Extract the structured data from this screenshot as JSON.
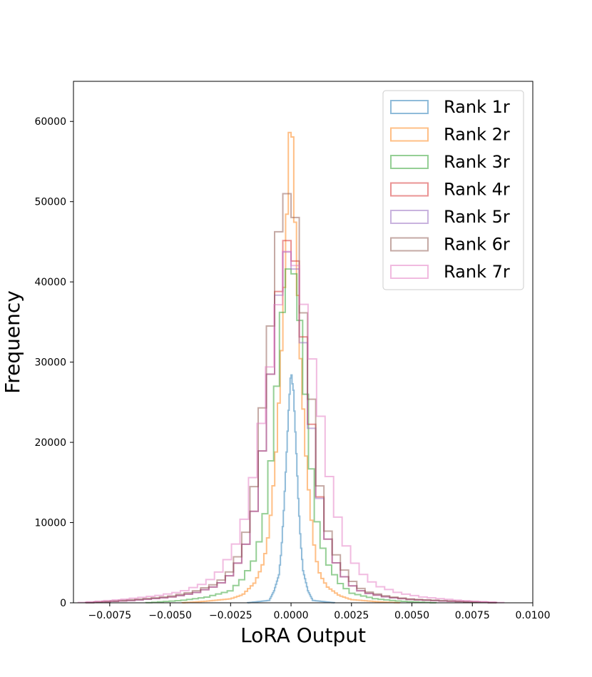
{
  "chart_data": {
    "type": "histogram",
    "title": "",
    "xlabel": "LoRA Output",
    "ylabel": "Frequency",
    "xlim": [
      -0.009,
      0.01
    ],
    "ylim": [
      0,
      65000
    ],
    "xticks": [
      -0.0075,
      -0.005,
      -0.0025,
      0.0,
      0.0025,
      0.005,
      0.0075,
      0.01
    ],
    "xtick_labels": [
      "−0.0075",
      "−0.0050",
      "−0.0025",
      "0.0000",
      "0.0025",
      "0.0050",
      "0.0075",
      "0.0100"
    ],
    "yticks": [
      0,
      10000,
      20000,
      30000,
      40000,
      50000,
      60000
    ],
    "ytick_labels": [
      "0",
      "10000",
      "20000",
      "30000",
      "40000",
      "50000",
      "60000"
    ],
    "grid": false,
    "legend_position": "top-right",
    "series": [
      {
        "name": "Rank 1r",
        "color": "#1f77b4",
        "step_x": [
          -0.0018,
          0.0018
        ],
        "profile": [
          [
            -0.0018,
            0
          ],
          [
            -0.0009,
            300
          ],
          [
            -0.0007,
            1500
          ],
          [
            -0.0005,
            3500
          ],
          [
            -0.0004,
            6500
          ],
          [
            -0.0003,
            11500
          ],
          [
            -0.0002,
            17500
          ],
          [
            -0.0001,
            24000
          ],
          [
            0.0,
            29000
          ],
          [
            5e-05,
            27500
          ],
          [
            0.0001,
            26500
          ],
          [
            0.0002,
            20000
          ],
          [
            0.0003,
            13000
          ],
          [
            0.0004,
            7500
          ],
          [
            0.0005,
            4000
          ],
          [
            0.0007,
            1500
          ],
          [
            0.0009,
            300
          ],
          [
            0.0018,
            0
          ]
        ]
      },
      {
        "name": "Rank 2r",
        "color": "#ff7f0e",
        "profile": [
          [
            -0.0045,
            0
          ],
          [
            -0.0035,
            200
          ],
          [
            -0.0025,
            500
          ],
          [
            -0.002,
            1000
          ],
          [
            -0.0015,
            2500
          ],
          [
            -0.0012,
            4500
          ],
          [
            -0.001,
            7000
          ],
          [
            -0.0008,
            12000
          ],
          [
            -0.0006,
            19500
          ],
          [
            -0.0004,
            31000
          ],
          [
            -0.0002,
            45000
          ],
          [
            -0.0001,
            56000
          ],
          [
            0.0,
            62000
          ],
          [
            0.0001,
            55000
          ],
          [
            0.0002,
            44000
          ],
          [
            0.0004,
            30000
          ],
          [
            0.0006,
            19000
          ],
          [
            0.0008,
            11500
          ],
          [
            0.001,
            6000
          ],
          [
            0.0012,
            3500
          ],
          [
            0.0015,
            2000
          ],
          [
            0.002,
            900
          ],
          [
            0.0025,
            400
          ],
          [
            0.0035,
            150
          ],
          [
            0.0045,
            0
          ]
        ]
      },
      {
        "name": "Rank 3r",
        "color": "#2ca02c",
        "profile": [
          [
            -0.006,
            0
          ],
          [
            -0.0045,
            300
          ],
          [
            -0.0035,
            700
          ],
          [
            -0.0025,
            1500
          ],
          [
            -0.002,
            3000
          ],
          [
            -0.0015,
            5500
          ],
          [
            -0.0012,
            9000
          ],
          [
            -0.001,
            12500
          ],
          [
            -0.0008,
            19000
          ],
          [
            -0.0006,
            27000
          ],
          [
            -0.0004,
            35000
          ],
          [
            -0.0002,
            41000
          ],
          [
            0.0,
            42500
          ],
          [
            0.0002,
            40000
          ],
          [
            0.0004,
            34000
          ],
          [
            0.0006,
            26000
          ],
          [
            0.0008,
            18000
          ],
          [
            0.001,
            11500
          ],
          [
            0.0012,
            8000
          ],
          [
            0.0015,
            5000
          ],
          [
            0.002,
            2500
          ],
          [
            0.0025,
            1200
          ],
          [
            0.0035,
            500
          ],
          [
            0.0045,
            200
          ],
          [
            0.006,
            0
          ]
        ]
      },
      {
        "name": "Rank 4r",
        "color": "#d62728",
        "profile": [
          [
            -0.0085,
            0
          ],
          [
            -0.0065,
            300
          ],
          [
            -0.005,
            700
          ],
          [
            -0.004,
            1200
          ],
          [
            -0.003,
            2200
          ],
          [
            -0.0025,
            3500
          ],
          [
            -0.002,
            6000
          ],
          [
            -0.0016,
            10000
          ],
          [
            -0.0013,
            16000
          ],
          [
            -0.001,
            24000
          ],
          [
            -0.0008,
            30000
          ],
          [
            -0.0006,
            37000
          ],
          [
            -0.0004,
            41000
          ],
          [
            -0.0002,
            45000
          ],
          [
            0.0,
            46000
          ],
          [
            0.0002,
            42000
          ],
          [
            0.0004,
            37000
          ],
          [
            0.0006,
            30000
          ],
          [
            0.0008,
            24000
          ],
          [
            0.001,
            17000
          ],
          [
            0.0013,
            11000
          ],
          [
            0.0016,
            7000
          ],
          [
            0.002,
            4000
          ],
          [
            0.0025,
            2200
          ],
          [
            0.003,
            1300
          ],
          [
            0.004,
            700
          ],
          [
            0.005,
            400
          ],
          [
            0.0065,
            200
          ],
          [
            0.0085,
            0
          ]
        ]
      },
      {
        "name": "Rank 5r",
        "color": "#9467bd",
        "profile": [
          [
            -0.0085,
            0
          ],
          [
            -0.0065,
            300
          ],
          [
            -0.005,
            700
          ],
          [
            -0.004,
            1200
          ],
          [
            -0.003,
            2200
          ],
          [
            -0.0025,
            3500
          ],
          [
            -0.002,
            6000
          ],
          [
            -0.0016,
            10000
          ],
          [
            -0.0013,
            16000
          ],
          [
            -0.001,
            24000
          ],
          [
            -0.0008,
            30000
          ],
          [
            -0.0006,
            37000
          ],
          [
            -0.0004,
            40000
          ],
          [
            -0.0002,
            43500
          ],
          [
            0.0,
            45000
          ],
          [
            0.0002,
            41000
          ],
          [
            0.0004,
            36000
          ],
          [
            0.0006,
            29500
          ],
          [
            0.0008,
            23500
          ],
          [
            0.001,
            16500
          ],
          [
            0.0013,
            11000
          ],
          [
            0.0016,
            7000
          ],
          [
            0.002,
            4000
          ],
          [
            0.0025,
            2200
          ],
          [
            0.003,
            1300
          ],
          [
            0.004,
            700
          ],
          [
            0.005,
            400
          ],
          [
            0.0065,
            200
          ],
          [
            0.0085,
            0
          ]
        ]
      },
      {
        "name": "Rank 6r",
        "color": "#8c564b",
        "profile": [
          [
            -0.0085,
            0
          ],
          [
            -0.0065,
            400
          ],
          [
            -0.005,
            800
          ],
          [
            -0.004,
            1400
          ],
          [
            -0.003,
            2500
          ],
          [
            -0.0025,
            4000
          ],
          [
            -0.002,
            7000
          ],
          [
            -0.0016,
            12500
          ],
          [
            -0.0013,
            21000
          ],
          [
            -0.001,
            30000
          ],
          [
            -0.0008,
            36000
          ],
          [
            -0.0006,
            44000
          ],
          [
            -0.0004,
            49000
          ],
          [
            -0.0002,
            51000
          ],
          [
            0.0,
            51000
          ],
          [
            0.0002,
            47500
          ],
          [
            0.0004,
            40000
          ],
          [
            0.0006,
            33000
          ],
          [
            0.0008,
            27500
          ],
          [
            0.001,
            19000
          ],
          [
            0.0013,
            12000
          ],
          [
            0.0016,
            8000
          ],
          [
            0.002,
            5000
          ],
          [
            0.0025,
            2800
          ],
          [
            0.003,
            1500
          ],
          [
            0.004,
            800
          ],
          [
            0.005,
            450
          ],
          [
            0.0065,
            250
          ],
          [
            0.0085,
            0
          ]
        ]
      },
      {
        "name": "Rank 7r",
        "color": "#e377c2",
        "profile": [
          [
            -0.0088,
            0
          ],
          [
            -0.007,
            400
          ],
          [
            -0.0055,
            900
          ],
          [
            -0.0045,
            1400
          ],
          [
            -0.0035,
            2500
          ],
          [
            -0.003,
            3800
          ],
          [
            -0.0025,
            6000
          ],
          [
            -0.0021,
            8500
          ],
          [
            -0.0018,
            12000
          ],
          [
            -0.0015,
            17000
          ],
          [
            -0.0012,
            23000
          ],
          [
            -0.0009,
            29000
          ],
          [
            -0.0006,
            35000
          ],
          [
            -0.0003,
            44000
          ],
          [
            0.0,
            43500
          ],
          [
            0.0003,
            41000
          ],
          [
            0.0006,
            36000
          ],
          [
            0.0009,
            30000
          ],
          [
            0.0012,
            24000
          ],
          [
            0.0015,
            17000
          ],
          [
            0.0018,
            12500
          ],
          [
            0.0021,
            8500
          ],
          [
            0.0025,
            5500
          ],
          [
            0.003,
            3500
          ],
          [
            0.0035,
            2200
          ],
          [
            0.0045,
            1200
          ],
          [
            0.0055,
            700
          ],
          [
            0.007,
            300
          ],
          [
            0.0088,
            0
          ]
        ]
      }
    ]
  }
}
